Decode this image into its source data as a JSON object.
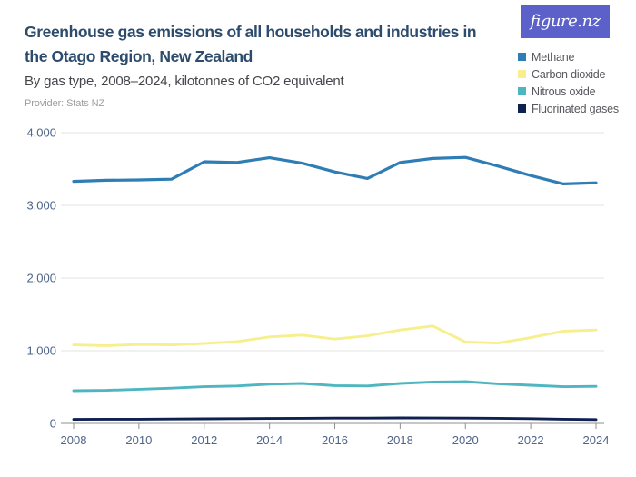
{
  "header": {
    "title_lines": [
      "Greenhouse gas emissions of all households and industries in",
      "the Otago Region, New Zealand"
    ],
    "subtitle": "By gas type, 2008–2024, kilotonnes of CO2 equivalent",
    "provider": "Provider: Stats NZ",
    "logo_text": "figure.nz",
    "logo_bg_color": "#5b61c9"
  },
  "legend": {
    "items": [
      {
        "label": "Methane",
        "color": "#2e7db5"
      },
      {
        "label": "Carbon dioxide",
        "color": "#f7ef8e"
      },
      {
        "label": "Nitrous oxide",
        "color": "#4db6c1"
      },
      {
        "label": "Fluorinated gases",
        "color": "#0f2150"
      }
    ]
  },
  "chart_data": {
    "type": "line",
    "title": "Greenhouse gas emissions of all households and industries in the Otago Region, New Zealand",
    "subtitle": "By gas type, 2008–2024, kilotonnes of CO2 equivalent",
    "x": [
      2008,
      2009,
      2010,
      2011,
      2012,
      2013,
      2014,
      2015,
      2016,
      2017,
      2018,
      2019,
      2020,
      2021,
      2022,
      2023,
      2024
    ],
    "xticks": [
      2008,
      2010,
      2012,
      2014,
      2016,
      2018,
      2020,
      2022,
      2024
    ],
    "xtick_labels": [
      "2008",
      "2010",
      "2012",
      "2014",
      "2016",
      "2018",
      "2020",
      "2022",
      "2024"
    ],
    "yticks": [
      0,
      1000,
      2000,
      3000,
      4000
    ],
    "ytick_labels": [
      "0",
      "1,000",
      "2,000",
      "3,000",
      "4,000"
    ],
    "ylim": [
      0,
      4000
    ],
    "grid": "horizontal",
    "legend_position": "top-right",
    "units": "kilotonnes of CO2 equivalent",
    "series": [
      {
        "name": "Methane",
        "color": "#2e7db5",
        "values": [
          3330,
          3345,
          3350,
          3360,
          3600,
          3590,
          3655,
          3580,
          3460,
          3370,
          3590,
          3645,
          3660,
          3540,
          3410,
          3295,
          3310
        ]
      },
      {
        "name": "Carbon dioxide",
        "color": "#f7ef8e",
        "values": [
          1080,
          1070,
          1085,
          1080,
          1100,
          1125,
          1190,
          1215,
          1160,
          1205,
          1285,
          1340,
          1120,
          1105,
          1180,
          1270,
          1285
        ]
      },
      {
        "name": "Nitrous oxide",
        "color": "#4db6c1",
        "values": [
          450,
          455,
          470,
          485,
          505,
          515,
          540,
          550,
          520,
          515,
          550,
          570,
          575,
          545,
          525,
          505,
          510
        ]
      },
      {
        "name": "Fluorinated gases",
        "color": "#0f2150",
        "values": [
          55,
          57,
          58,
          60,
          63,
          65,
          68,
          70,
          72,
          73,
          75,
          74,
          72,
          70,
          65,
          57,
          53
        ]
      }
    ]
  }
}
